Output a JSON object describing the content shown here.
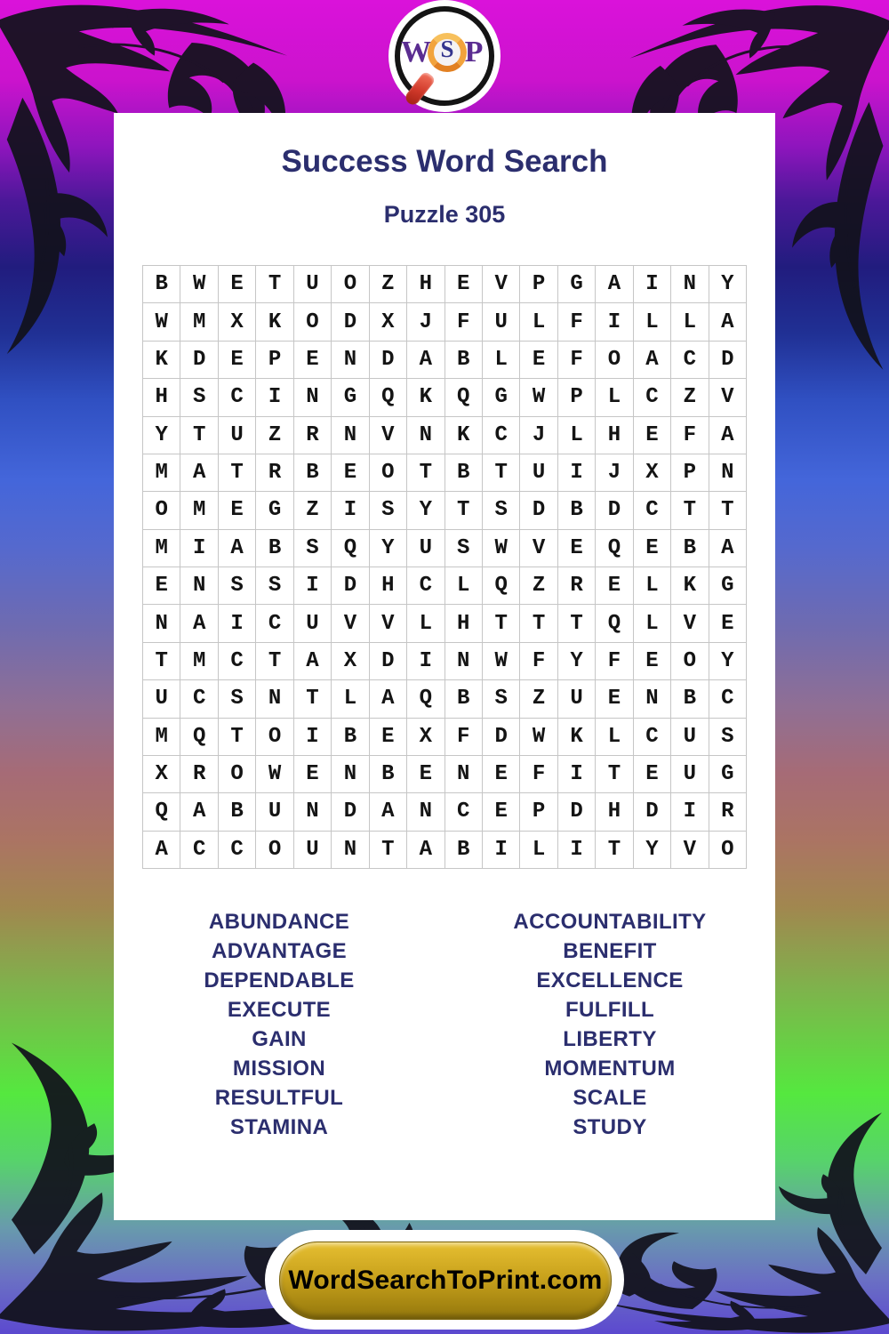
{
  "logo": {
    "w": "W",
    "s": "S",
    "p": "P"
  },
  "header": {
    "title": "Success Word Search",
    "subtitle": "Puzzle 305"
  },
  "puzzle": {
    "rows": 16,
    "cols": 16,
    "grid": [
      "BWETUOZHEVPGAINY",
      "WMXKODXJFULFILLA",
      "KDEPENDABLEFOACD",
      "HSCINGQKQGWPLCZV",
      "YTUZRNVNKCJLHEFA",
      "MATRBEOTBTUIJXPN",
      "OMEGZISYTSDBDCTT",
      "MIABSQYUSWVEQEBA",
      "ENSSIDHCLQZRELKG",
      "NAICUVVLHTTTQLVE",
      "TMCTAXDINWFYFEOY",
      "UCSNTLAQBSZUENBC",
      "MQTOIBEXFDWKLCUS",
      "XROWENBENEFITEUG",
      "QABUNDANCEPDHDIR",
      "ACCOUNTABILITYVO"
    ]
  },
  "words": {
    "left": [
      "ABUNDANCE",
      "ADVANTAGE",
      "DEPENDABLE",
      "EXECUTE",
      "GAIN",
      "MISSION",
      "RESULTFUL",
      "STAMINA"
    ],
    "right": [
      "ACCOUNTABILITY",
      "BENEFIT",
      "EXCELLENCE",
      "FULFILL",
      "LIBERTY",
      "MOMENTUM",
      "SCALE",
      "STUDY"
    ]
  },
  "footer": {
    "site_button": "WordSearchToPrint.com"
  },
  "colors": {
    "heading": "#2b2e6e",
    "word": "#2b2e6e",
    "grid-letter": "#141414",
    "logo-letter": "#5b2d91",
    "logo-s": "#34348e",
    "lens-ring": "#f2a33c",
    "handle-red": "#d0392a",
    "button-gold": "#c9a21c",
    "button-text": "#000000",
    "bg-top-magenta": "#da12da",
    "bg-green": "#55e83f",
    "bg-bottom-purple": "#5c49cf"
  }
}
